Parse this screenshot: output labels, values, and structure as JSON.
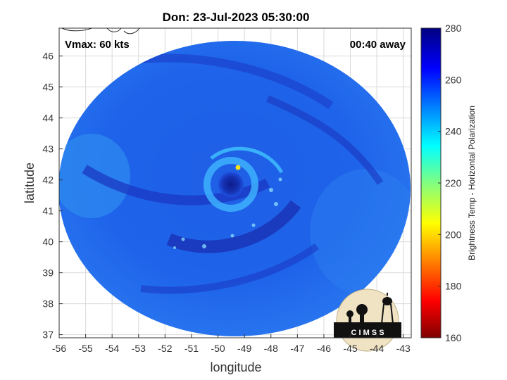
{
  "title": "Don: 23-Jul-2023 05:30:00",
  "vmax_label": "Vmax: 60 kts",
  "time_away_label": "00:40 away",
  "xlabel": "longitude",
  "ylabel": "latitude",
  "colorbar_label": "Brightness Temp - Horizontal Polarization",
  "logo_text": "C I M S S",
  "axes": {
    "xlim": [
      -56,
      -42.7
    ],
    "ylim": [
      36.9,
      46.9
    ],
    "xticks": [
      "-56",
      "-55",
      "-54",
      "-53",
      "-52",
      "-51",
      "-50",
      "-49",
      "-48",
      "-47",
      "-46",
      "-45",
      "-44",
      "-43"
    ],
    "yticks": [
      "37",
      "38",
      "39",
      "40",
      "41",
      "42",
      "43",
      "44",
      "45",
      "46"
    ]
  },
  "colorbar": {
    "min": 160,
    "max": 280,
    "ticks": [
      "160",
      "180",
      "200",
      "220",
      "240",
      "260",
      "280"
    ]
  },
  "storm_center": {
    "lon": -49.7,
    "lat": 41.9
  },
  "colors": {
    "background_blue": "#1a5ae8",
    "dark_band": "#1a2fb8",
    "eyewall": "#4fc8ff",
    "warm_spot": "#f6e21a"
  }
}
